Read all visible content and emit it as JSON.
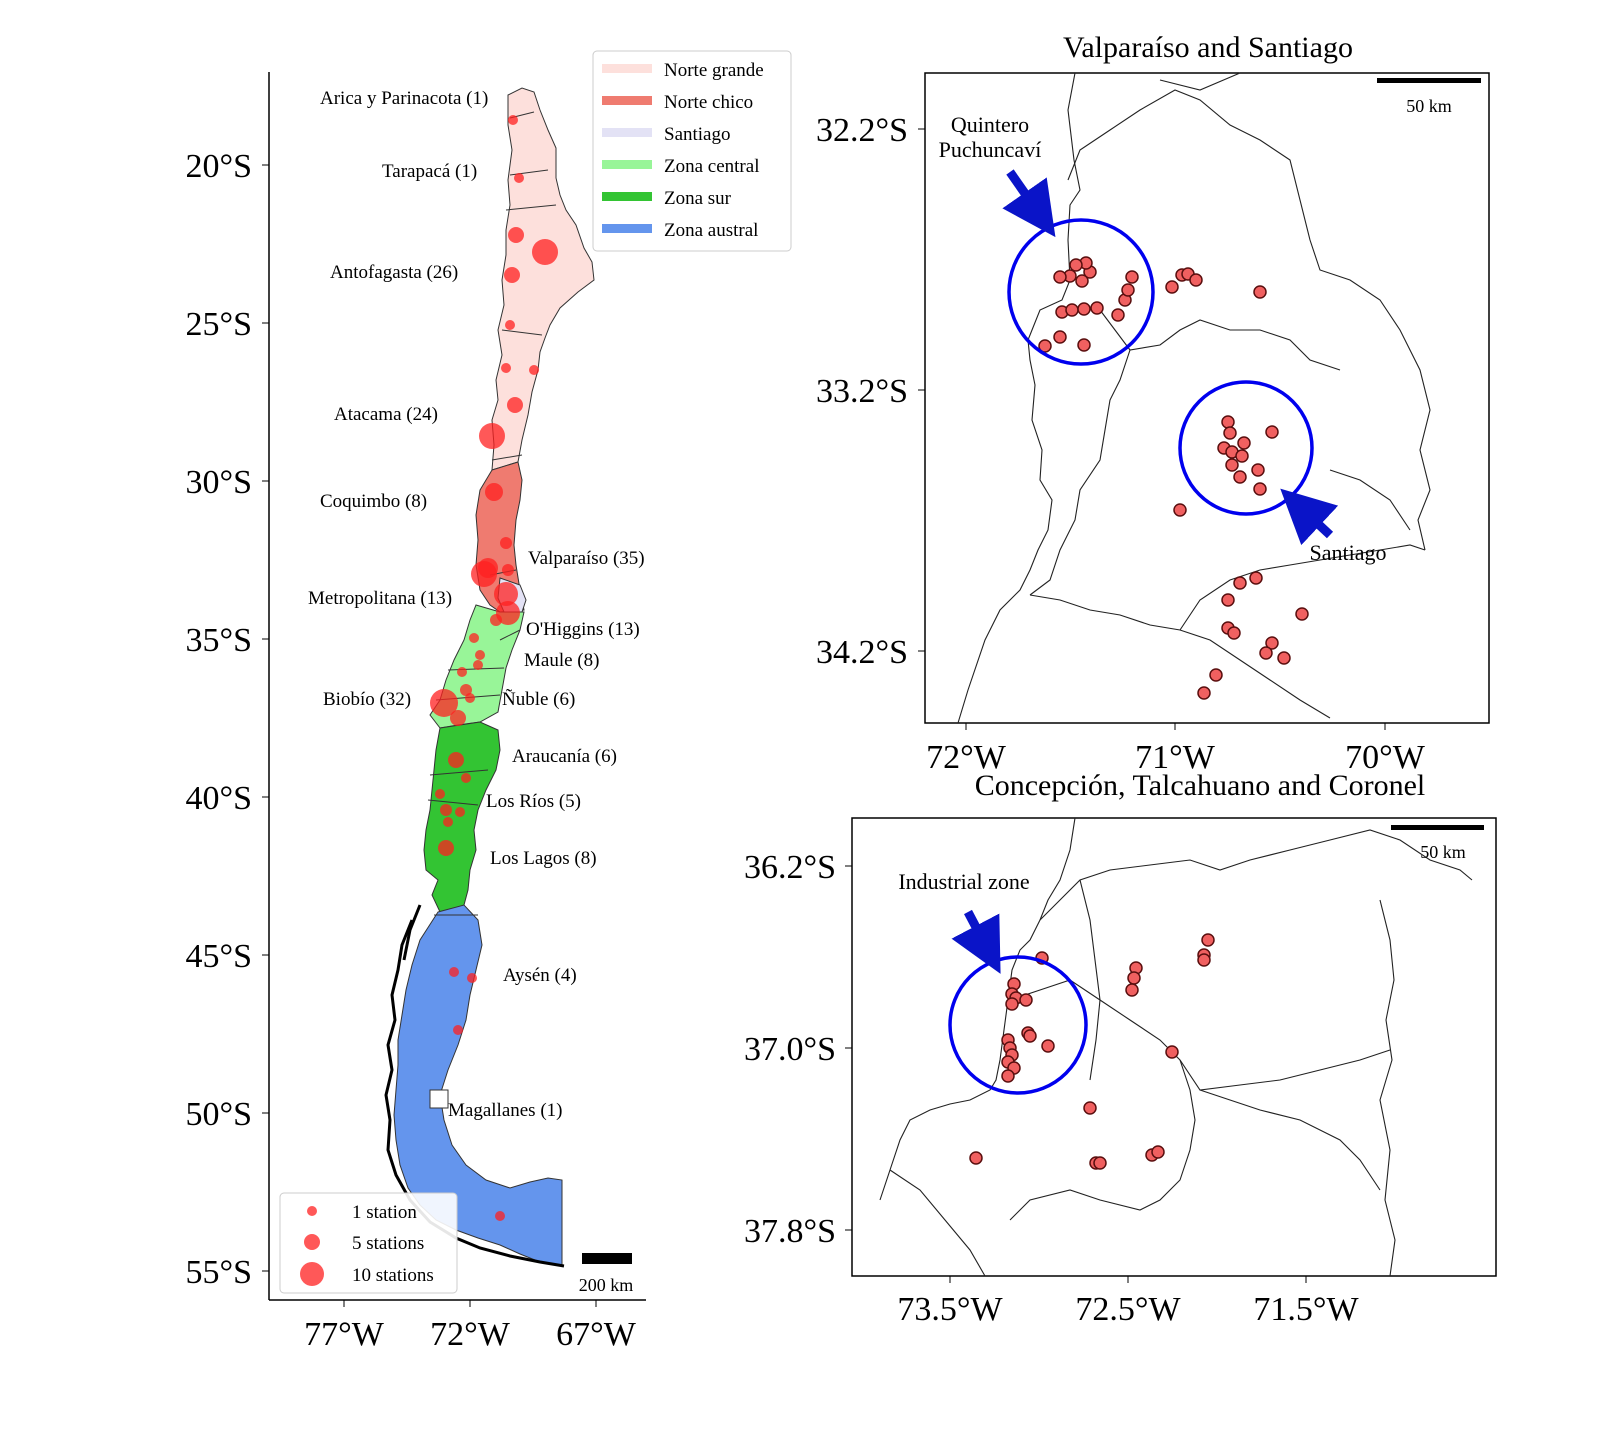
{
  "main_map": {
    "y_ticks": [
      "20°S",
      "25°S",
      "30°S",
      "35°S",
      "40°S",
      "45°S",
      "50°S",
      "55°S"
    ],
    "x_ticks": [
      "77°W",
      "72°W",
      "67°W"
    ],
    "regions": [
      {
        "label": "Arica y Parinacota (1)"
      },
      {
        "label": "Tarapacá (1)"
      },
      {
        "label": "Antofagasta (26)"
      },
      {
        "label": "Atacama (24)"
      },
      {
        "label": "Coquimbo (8)"
      },
      {
        "label": "Valparaíso (35)"
      },
      {
        "label": "Metropolitana (13)"
      },
      {
        "label": "O'Higgins (13)"
      },
      {
        "label": "Maule (8)"
      },
      {
        "label": "Ñuble (6)"
      },
      {
        "label": "Biobío (32)"
      },
      {
        "label": "Araucanía (6)"
      },
      {
        "label": "Los Ríos (5)"
      },
      {
        "label": "Los Lagos (8)"
      },
      {
        "label": "Aysén (4)"
      },
      {
        "label": "Magallanes (1)"
      }
    ],
    "zone_legend": [
      {
        "label": "Norte grande",
        "color": "#fde0dc"
      },
      {
        "label": "Norte chico",
        "color": "#ef7b70"
      },
      {
        "label": "Santiago",
        "color": "#e3e2f5"
      },
      {
        "label": "Zona central",
        "color": "#98f598"
      },
      {
        "label": "Zona sur",
        "color": "#33c433"
      },
      {
        "label": "Zona austral",
        "color": "#6495ed"
      }
    ],
    "size_legend": [
      {
        "label": "1 station",
        "stations": 1
      },
      {
        "label": "5 stations",
        "stations": 5
      },
      {
        "label": "10 stations",
        "stations": 10
      }
    ],
    "scale_label": "200 km"
  },
  "inset_valparaiso": {
    "title": "Valparaíso and Santiago",
    "y_ticks": [
      "32.2°S",
      "33.2°S",
      "34.2°S"
    ],
    "x_ticks": [
      "72°W",
      "71°W",
      "70°W"
    ],
    "scale_label": "50 km",
    "annotations": {
      "quintero_line1": "Quintero",
      "quintero_line2": "Puchuncaví",
      "santiago": "Santiago"
    }
  },
  "inset_concepcion": {
    "title": "Concepción, Talcahuano and Coronel",
    "y_ticks": [
      "36.2°S",
      "37.0°S",
      "37.8°S"
    ],
    "x_ticks": [
      "73.5°W",
      "72.5°W",
      "71.5°W"
    ],
    "scale_label": "50 km",
    "annotations": {
      "industrial": "Industrial zone"
    }
  },
  "colors": {
    "station_fill": "#ff2020",
    "station_inset": "#f06060",
    "highlight_circle": "#0000ee",
    "arrow": "#0a14c8"
  }
}
